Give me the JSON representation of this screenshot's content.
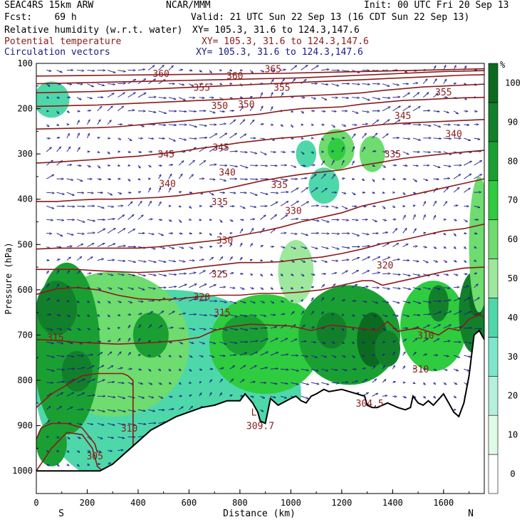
{
  "header": {
    "model": "SEAC4RS 15km ARW",
    "fcst": "Fcst:    69 h",
    "org": "NCAR/MMM",
    "init": "Init: 00 UTC Fri 20 Sep 13",
    "valid": "Valid: 21 UTC Sun 22 Sep 13 (16 CDT Sun 22 Sep 13)",
    "fields": [
      {
        "name": "Relative humidity (w.r.t. water)",
        "xy": "XY= 105.3, 31.6 to 124.3,147.6",
        "color": "#000000"
      },
      {
        "name": "Potential temperature",
        "xy": "XY= 105.3, 31.6 to 124.3,147.6",
        "color": "#8b1a1a"
      },
      {
        "name": "Circulation vectors",
        "xy": "XY= 105.3, 31.6 to 124.3,147.6",
        "color": "#1a1a8b"
      }
    ]
  },
  "colors": {
    "theta": "#8b1a1a",
    "vector": "#1c1c8c",
    "terrain": "#000000",
    "rh_levels": [
      "#ffffff",
      "#e0fae8",
      "#b4f0dc",
      "#7ee6cc",
      "#4ed8aa",
      "#9ee89e",
      "#6edc6e",
      "#2ecc3e",
      "#1aa032",
      "#12802a",
      "#0c6a20"
    ]
  },
  "chart_data": {
    "type": "cross-section",
    "xlabel": "Distance (km)",
    "ylabel": "Pressure (hPa)",
    "x_ticks": [
      0,
      200,
      400,
      600,
      800,
      1000,
      1200,
      1400,
      1600
    ],
    "y_ticks": [
      100,
      200,
      300,
      400,
      500,
      600,
      700,
      800,
      900,
      1000
    ],
    "xlim": [
      0,
      1760
    ],
    "ylim": [
      1050,
      100
    ],
    "x_endpoint_labels": {
      "left": "S",
      "right": "N"
    },
    "colorbar": {
      "unit": "%",
      "tick_labels": [
        0,
        10,
        20,
        30,
        40,
        50,
        60,
        70,
        80,
        90,
        100
      ],
      "bounds": [
        -10,
        5,
        15,
        25,
        35,
        45,
        55,
        65,
        75,
        85,
        95,
        105
      ]
    },
    "terrain_pressure": {
      "x": [
        0,
        250,
        300,
        350,
        400,
        450,
        500,
        550,
        600,
        650,
        700,
        750,
        800,
        820,
        850,
        870,
        880,
        900,
        920,
        950,
        1000,
        1020,
        1040,
        1060,
        1080,
        1100,
        1130,
        1150,
        1200,
        1230,
        1260,
        1290,
        1300,
        1320,
        1340,
        1380,
        1420,
        1450,
        1470,
        1480,
        1500,
        1520,
        1540,
        1560,
        1600,
        1620,
        1640,
        1660,
        1680,
        1700,
        1720,
        1740,
        1760
      ],
      "p": [
        1000,
        1000,
        985,
        960,
        935,
        910,
        895,
        880,
        870,
        860,
        855,
        845,
        845,
        830,
        850,
        870,
        890,
        895,
        840,
        855,
        840,
        835,
        845,
        850,
        835,
        830,
        820,
        825,
        820,
        825,
        830,
        835,
        855,
        860,
        860,
        850,
        860,
        865,
        860,
        835,
        850,
        855,
        845,
        855,
        830,
        850,
        870,
        880,
        850,
        790,
        700,
        690,
        710
      ]
    },
    "theta_contours": [
      {
        "level": 305,
        "x": [
          0,
          60,
          120,
          180,
          220,
          240,
          260
        ],
        "p": [
          1000,
          950,
          915,
          920,
          950,
          990,
          1000
        ]
      },
      {
        "level": 310,
        "x": [
          0,
          20,
          60,
          120,
          180,
          230,
          240
        ],
        "p": [
          930,
          905,
          895,
          895,
          905,
          940,
          960
        ]
      },
      {
        "level": 315,
        "x": [
          0,
          60,
          120,
          180,
          240,
          300,
          340,
          360,
          380,
          380
        ],
        "p": [
          860,
          830,
          810,
          790,
          785,
          785,
          785,
          790,
          800,
          980
        ]
      },
      {
        "level": 315,
        "x": [
          0,
          80,
          160,
          240,
          320,
          400,
          480,
          560,
          640,
          700,
          760,
          840,
          920,
          1000,
          1080,
          1160,
          1240,
          1300,
          1340,
          1380,
          1420,
          1460,
          1500,
          1540,
          1580,
          1620,
          1660,
          1700,
          1740,
          1760
        ],
        "p": [
          710,
          712,
          716,
          718,
          720,
          718,
          716,
          712,
          705,
          690,
          682,
          676,
          678,
          680,
          690,
          678,
          683,
          688,
          690,
          670,
          692,
          688,
          685,
          692,
          700,
          685,
          690,
          665,
          655,
          660
        ]
      },
      {
        "level": 320,
        "x": [
          0,
          80,
          160,
          240,
          320,
          400,
          480,
          560,
          640,
          720,
          800,
          880,
          960,
          1040,
          1120,
          1200,
          1280,
          1320,
          1360,
          1440,
          1520,
          1600,
          1680,
          1760
        ],
        "p": [
          610,
          598,
          595,
          600,
          612,
          620,
          622,
          620,
          615,
          612,
          612,
          608,
          608,
          605,
          600,
          590,
          580,
          580,
          590,
          580,
          570,
          560,
          552,
          550
        ]
      },
      {
        "level": 325,
        "x": [
          0,
          80,
          160,
          240,
          320,
          400,
          480,
          560,
          640,
          720,
          800,
          880,
          960,
          1040,
          1120,
          1200,
          1280,
          1360,
          1440,
          1520,
          1600,
          1680,
          1760
        ],
        "p": [
          555,
          555,
          555,
          558,
          560,
          562,
          560,
          556,
          550,
          545,
          540,
          540,
          538,
          532,
          528,
          520,
          510,
          498,
          490,
          480,
          470,
          465,
          455
        ]
      },
      {
        "level": 330,
        "x": [
          0,
          80,
          160,
          240,
          320,
          400,
          480,
          560,
          640,
          720,
          800,
          880,
          960,
          1040,
          1120,
          1200,
          1280,
          1360,
          1440,
          1520,
          1600,
          1680,
          1760
        ],
        "p": [
          510,
          508,
          508,
          508,
          508,
          508,
          505,
          500,
          495,
          490,
          480,
          472,
          462,
          450,
          440,
          430,
          415,
          405,
          395,
          385,
          375,
          365,
          355
        ]
      },
      {
        "level": 335,
        "x": [
          0,
          80,
          160,
          240,
          320,
          400,
          480,
          560,
          640,
          720,
          800,
          880,
          960,
          1040,
          1120,
          1200,
          1280,
          1360,
          1440,
          1520,
          1600,
          1680,
          1760
        ],
        "p": [
          405,
          405,
          402,
          400,
          400,
          398,
          396,
          392,
          386,
          380,
          370,
          360,
          352,
          345,
          340,
          335,
          325,
          318,
          310,
          305,
          300,
          296,
          292
        ]
      },
      {
        "level": 340,
        "x": [
          0,
          80,
          160,
          240,
          320,
          400,
          480,
          560,
          640,
          720,
          800,
          880,
          960,
          1040,
          1120,
          1200,
          1280,
          1360,
          1440,
          1520,
          1600,
          1680,
          1760
        ],
        "p": [
          320,
          318,
          315,
          312,
          308,
          305,
          300,
          295,
          288,
          282,
          275,
          270,
          265,
          262,
          256,
          250,
          240,
          235,
          232,
          230,
          228,
          226,
          224
        ]
      },
      {
        "level": 345,
        "x": [
          0,
          80,
          160,
          240,
          320,
          400,
          480,
          560,
          640,
          720,
          800,
          880,
          960,
          1040,
          1120,
          1200,
          1280,
          1360,
          1440,
          1520,
          1600,
          1680,
          1760
        ],
        "p": [
          245,
          244,
          243,
          242,
          240,
          236,
          232,
          228,
          224,
          220,
          216,
          212,
          205,
          200,
          198,
          196,
          190,
          186,
          182,
          180,
          178,
          176,
          175
        ]
      },
      {
        "level": 350,
        "x": [
          0,
          80,
          160,
          240,
          320,
          400,
          480,
          560,
          640,
          720,
          800,
          880,
          960,
          1040,
          1120,
          1200,
          1280,
          1360,
          1440,
          1520,
          1600,
          1680,
          1760
        ],
        "p": [
          195,
          194,
          193,
          192,
          190,
          188,
          186,
          184,
          182,
          180,
          178,
          176,
          174,
          172,
          170,
          168,
          165,
          160,
          156,
          152,
          150,
          148,
          146
        ]
      },
      {
        "level": 355,
        "x": [
          0,
          80,
          160,
          240,
          320,
          400,
          480,
          560,
          640,
          720,
          800,
          880,
          960,
          1040,
          1120,
          1200,
          1280,
          1360,
          1440,
          1520,
          1600,
          1680,
          1760
        ],
        "p": [
          165,
          164,
          163,
          162,
          160,
          158,
          156,
          154,
          152,
          150,
          148,
          146,
          144,
          142,
          140,
          138,
          136,
          134,
          132,
          130,
          128,
          126,
          125
        ]
      },
      {
        "level": 360,
        "x": [
          0,
          80,
          160,
          240,
          320,
          400,
          480,
          560,
          640,
          720,
          800,
          880,
          960,
          1040,
          1120,
          1200,
          1280,
          1360,
          1440,
          1520,
          1600,
          1680,
          1760
        ],
        "p": [
          145,
          144,
          143,
          142,
          141,
          140,
          139,
          138,
          137,
          136,
          135,
          134,
          133,
          132,
          130,
          128,
          126,
          124,
          122,
          120,
          118,
          117,
          116
        ]
      },
      {
        "level": 365,
        "x": [
          0,
          160,
          320,
          480,
          640,
          800,
          960,
          1120,
          1280,
          1440,
          1600,
          1760
        ],
        "p": [
          128,
          127,
          126,
          125,
          124,
          123,
          122,
          120,
          118,
          116,
          114,
          112
        ]
      }
    ],
    "theta_labels": [
      {
        "text": "360",
        "x": 490,
        "p": 122
      },
      {
        "text": "365",
        "x": 930,
        "p": 112
      },
      {
        "text": "360",
        "x": 780,
        "p": 127
      },
      {
        "text": "355",
        "x": 650,
        "p": 153
      },
      {
        "text": "355",
        "x": 965,
        "p": 153
      },
      {
        "text": "355",
        "x": 1600,
        "p": 163
      },
      {
        "text": "350",
        "x": 720,
        "p": 193
      },
      {
        "text": "350",
        "x": 825,
        "p": 190
      },
      {
        "text": "345",
        "x": 1440,
        "p": 215
      },
      {
        "text": "340",
        "x": 1640,
        "p": 255
      },
      {
        "text": "345",
        "x": 510,
        "p": 300
      },
      {
        "text": "345",
        "x": 725,
        "p": 285
      },
      {
        "text": "335",
        "x": 1400,
        "p": 300
      },
      {
        "text": "340",
        "x": 750,
        "p": 340
      },
      {
        "text": "340",
        "x": 515,
        "p": 365
      },
      {
        "text": "335",
        "x": 955,
        "p": 367
      },
      {
        "text": "335",
        "x": 720,
        "p": 405
      },
      {
        "text": "330",
        "x": 1010,
        "p": 425
      },
      {
        "text": "330",
        "x": 740,
        "p": 490
      },
      {
        "text": "325",
        "x": 720,
        "p": 565
      },
      {
        "text": "320",
        "x": 1370,
        "p": 545
      },
      {
        "text": "320",
        "x": 650,
        "p": 615
      },
      {
        "text": "315",
        "x": 730,
        "p": 650
      },
      {
        "text": "315",
        "x": 75,
        "p": 705
      },
      {
        "text": "310",
        "x": 1530,
        "p": 700
      },
      {
        "text": "310",
        "x": 1510,
        "p": 775
      },
      {
        "text": "310",
        "x": 365,
        "p": 905
      },
      {
        "text": "305",
        "x": 230,
        "p": 967
      },
      {
        "text": "304.5",
        "x": 1310,
        "p": 850
      },
      {
        "text": "309.7",
        "x": 880,
        "p": 900
      },
      {
        "text": "L",
        "x": 855,
        "p": 870
      }
    ],
    "rh_blobs": [
      {
        "x": 520,
        "p": 830,
        "rx": 520,
        "rp": 230,
        "rh": 35
      },
      {
        "x": 300,
        "p": 720,
        "rx": 300,
        "rp": 160,
        "rh": 55
      },
      {
        "x": 120,
        "p": 730,
        "rx": 130,
        "rp": 190,
        "rh": 75
      },
      {
        "x": 80,
        "p": 640,
        "rx": 80,
        "rp": 60,
        "rh": 88
      },
      {
        "x": 160,
        "p": 780,
        "rx": 60,
        "rp": 45,
        "rh": 92
      },
      {
        "x": 60,
        "p": 940,
        "rx": 60,
        "rp": 50,
        "rh": 75
      },
      {
        "x": 450,
        "p": 700,
        "rx": 70,
        "rp": 50,
        "rh": 78
      },
      {
        "x": 900,
        "p": 720,
        "rx": 220,
        "rp": 110,
        "rh": 65
      },
      {
        "x": 820,
        "p": 700,
        "rx": 90,
        "rp": 45,
        "rh": 82
      },
      {
        "x": 1230,
        "p": 700,
        "rx": 200,
        "rp": 110,
        "rh": 75
      },
      {
        "x": 1160,
        "p": 690,
        "rx": 60,
        "rp": 40,
        "rh": 92
      },
      {
        "x": 1320,
        "p": 710,
        "rx": 60,
        "rp": 60,
        "rh": 95
      },
      {
        "x": 1380,
        "p": 730,
        "rx": 50,
        "rp": 40,
        "rh": 88
      },
      {
        "x": 1560,
        "p": 680,
        "rx": 130,
        "rp": 100,
        "rh": 70
      },
      {
        "x": 1580,
        "p": 630,
        "rx": 40,
        "rp": 40,
        "rh": 85
      },
      {
        "x": 1720,
        "p": 650,
        "rx": 60,
        "rp": 90,
        "rh": 85
      },
      {
        "x": 1730,
        "p": 620,
        "rx": 30,
        "rp": 40,
        "rh": 95
      },
      {
        "x": 1020,
        "p": 560,
        "rx": 70,
        "rp": 70,
        "rh": 45
      },
      {
        "x": 1180,
        "p": 290,
        "rx": 70,
        "rp": 45,
        "rh": 55
      },
      {
        "x": 1180,
        "p": 290,
        "rx": 35,
        "rp": 25,
        "rh": 68
      },
      {
        "x": 1320,
        "p": 300,
        "rx": 50,
        "rp": 40,
        "rh": 60
      },
      {
        "x": 1130,
        "p": 370,
        "rx": 60,
        "rp": 40,
        "rh": 40
      },
      {
        "x": 1060,
        "p": 300,
        "rx": 40,
        "rp": 30,
        "rh": 40
      },
      {
        "x": 60,
        "p": 180,
        "rx": 70,
        "rp": 40,
        "rh": 35
      },
      {
        "x": 1740,
        "p": 500,
        "rx": 40,
        "rp": 150,
        "rh": 60
      }
    ]
  }
}
